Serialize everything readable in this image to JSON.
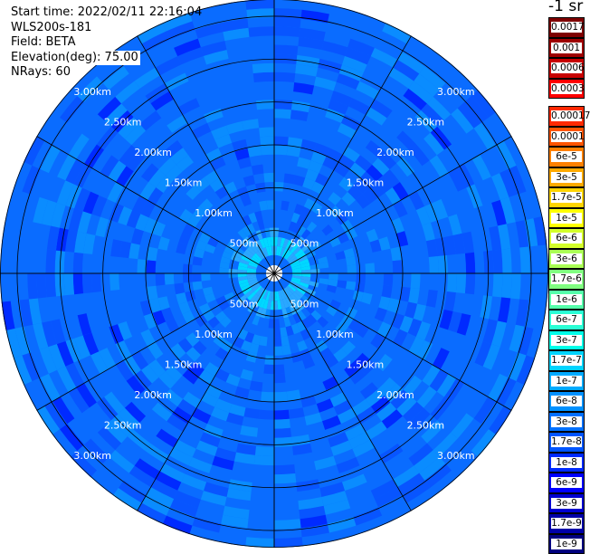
{
  "header": {
    "start_time": "Start time: 2022/02/11 22:16:04",
    "instrument": "WLS200s-181",
    "field": "Field: BETA",
    "elevation": "Elevation(deg): 75.00",
    "nrays": "NRays: 60"
  },
  "colorbar": {
    "title": "-1 sr",
    "entries": [
      {
        "label": "0.0017",
        "color": "#7f0000"
      },
      {
        "label": "0.001",
        "color": "#9e0000"
      },
      {
        "label": "0.0006",
        "color": "#c80000"
      },
      {
        "label": "0.0003",
        "color": "#ff0000"
      },
      {
        "label": "0.00017",
        "color": "#ff2a00"
      },
      {
        "label": "0.0001",
        "color": "#ff5500"
      },
      {
        "label": "6e-5",
        "color": "#ff8000"
      },
      {
        "label": "3e-5",
        "color": "#ffaa00"
      },
      {
        "label": "1.7e-5",
        "color": "#ffd400"
      },
      {
        "label": "1e-5",
        "color": "#ffff00"
      },
      {
        "label": "6e-6",
        "color": "#d4ff2a"
      },
      {
        "label": "3e-6",
        "color": "#aaff55"
      },
      {
        "label": "1.7e-6",
        "color": "#80ff80"
      },
      {
        "label": "1e-6",
        "color": "#55ffaa"
      },
      {
        "label": "6e-7",
        "color": "#2affd4"
      },
      {
        "label": "3e-7",
        "color": "#00ffe8"
      },
      {
        "label": "1.7e-7",
        "color": "#00d4ff"
      },
      {
        "label": "1e-7",
        "color": "#00aaff"
      },
      {
        "label": "6e-8",
        "color": "#0091ff"
      },
      {
        "label": "3e-8",
        "color": "#0070ff"
      },
      {
        "label": "1.7e-8",
        "color": "#0055ff"
      },
      {
        "label": "1e-8",
        "color": "#002aff"
      },
      {
        "label": "6e-9",
        "color": "#0000ff"
      },
      {
        "label": "3e-9",
        "color": "#0000d0"
      },
      {
        "label": "1.7e-9",
        "color": "#0000a8"
      },
      {
        "label": "1e-9",
        "color": "#00007f"
      }
    ]
  },
  "range_labels_km": [
    {
      "text": "500m",
      "range": 0.5
    },
    {
      "text": "1.00km",
      "range": 1.0
    },
    {
      "text": "1.50km",
      "range": 1.5
    },
    {
      "text": "2.00km",
      "range": 2.0
    },
    {
      "text": "2.50km",
      "range": 2.5
    },
    {
      "text": "3.00km",
      "range": 3.0
    }
  ],
  "plot": {
    "max_range_km": 3.2,
    "ray_count": 12,
    "colors": {
      "base": "#0a6cff",
      "light": "#0a8cff",
      "mid": "#0855ff",
      "dark": "#002aff",
      "inner_cyan": "#2aa8ff",
      "inner_aqua": "#00d8ff",
      "grid": "#000000",
      "label": "#ffffff"
    }
  }
}
